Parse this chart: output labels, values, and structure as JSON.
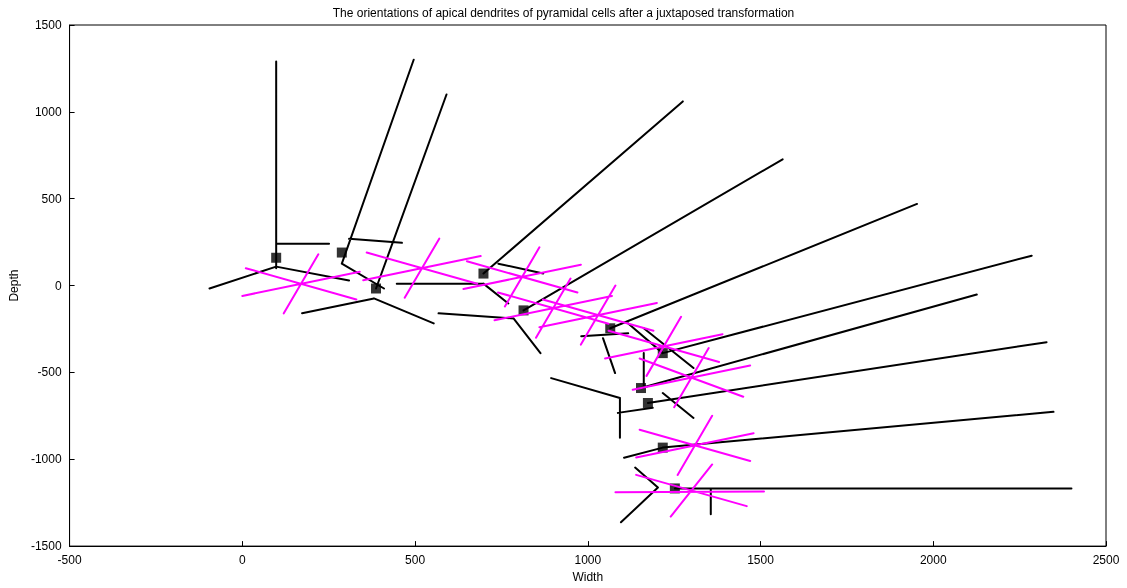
{
  "chart_data": {
    "type": "line",
    "title": "The orientations of apical dendrites of pyramidal cells after a juxtaposed transformation",
    "xlabel": "Width",
    "ylabel": "Depth",
    "xlim": [
      -500,
      2500
    ],
    "xticks": [
      -500,
      0,
      500,
      1000,
      1500,
      2000,
      2500
    ],
    "ylim": [
      -1500,
      1500
    ],
    "yticks": [
      -1500,
      -1000,
      -500,
      0,
      500,
      1000,
      1500
    ],
    "grid": false,
    "series": [
      {
        "color": "#000000",
        "marker": "none",
        "x": [
          98,
          98,
          null,
          98,
          251,
          null,
          288,
          496,
          null,
          387,
          591,
          null,
          698,
          1275,
          null,
          814,
          1564,
          null,
          1065,
          1953,
          null,
          1217,
          2285,
          null,
          1154,
          2126,
          null,
          1174,
          2328,
          null,
          1217,
          2348,
          null,
          1252,
          2400,
          null,
          -95,
          98,
          null,
          98,
          309,
          null,
          288,
          410,
          null,
          309,
          462,
          null,
          173,
          381,
          null,
          381,
          554,
          null,
          447,
          698,
          null,
          698,
          770,
          null,
          568,
          785,
          null,
          785,
          863,
          null,
          741,
          871,
          null,
          981,
          1117,
          null,
          1044,
          1079,
          null,
          1117,
          1217,
          null,
          1162,
          1306,
          null,
          1162,
          1162,
          null,
          894,
          1093,
          null,
          1093,
          1093,
          null,
          1087,
          1188,
          null,
          1217,
          1306,
          null,
          1105,
          1217,
          null,
          1137,
          1203,
          null,
          1203,
          1096,
          null,
          1356,
          1356,
          null
        ],
        "values": [
          1290,
          100,
          null,
          240,
          240,
          null,
          126,
          1300,
          null,
          -17,
          1100,
          null,
          69,
          1060,
          null,
          -143,
          727,
          null,
          -246,
          470,
          null,
          -389,
          172,
          null,
          -590,
          -52,
          null,
          -676,
          -326,
          null,
          -933,
          -727,
          null,
          -1168,
          -1168,
          null,
          -17,
          109,
          null,
          109,
          29,
          null,
          126,
          -17,
          null,
          269,
          246,
          null,
          -160,
          -74,
          null,
          -74,
          -218,
          null,
          11,
          11,
          null,
          11,
          -103,
          null,
          -160,
          -189,
          null,
          -189,
          -389,
          null,
          126,
          69,
          null,
          -292,
          -275,
          null,
          -303,
          -504,
          null,
          -218,
          -389,
          null,
          -246,
          -475,
          null,
          -389,
          -590,
          null,
          -533,
          -647,
          null,
          -647,
          -876,
          null,
          -733,
          -704,
          null,
          -619,
          -762,
          null,
          -991,
          -933,
          null,
          -1048,
          -1163,
          null,
          -1163,
          -1363,
          null,
          -1168,
          -1317,
          null
        ]
      },
      {
        "color": "#ff00ff",
        "marker": "none",
        "x": [
          0,
          340,
          null,
          10,
          330,
          null,
          120,
          220,
          null,
          350,
          690,
          null,
          360,
          680,
          null,
          470,
          570,
          null,
          640,
          980,
          null,
          650,
          970,
          null,
          760,
          860,
          null,
          730,
          1070,
          null,
          740,
          1060,
          null,
          850,
          950,
          null,
          860,
          1200,
          null,
          870,
          1190,
          null,
          980,
          1080,
          null,
          1050,
          1390,
          null,
          1060,
          1380,
          null,
          1170,
          1270,
          null,
          1130,
          1470,
          null,
          1250,
          1350,
          null,
          1150,
          1450,
          null,
          1140,
          1480,
          null,
          1150,
          1470,
          null,
          1260,
          1360,
          null,
          1080,
          1510,
          null,
          1140,
          1460,
          null,
          1240,
          1360
        ],
        "values": [
          -60,
          80,
          null,
          100,
          -80,
          null,
          -160,
          180,
          null,
          30,
          170,
          null,
          190,
          10,
          null,
          -70,
          270,
          null,
          -20,
          120,
          null,
          140,
          -40,
          null,
          -120,
          220,
          null,
          -200,
          -60,
          null,
          -40,
          -220,
          null,
          -300,
          40,
          null,
          -240,
          -100,
          null,
          -80,
          -260,
          null,
          -340,
          0,
          null,
          -420,
          -280,
          null,
          -260,
          -440,
          null,
          -520,
          -180,
          null,
          -600,
          -460,
          null,
          -700,
          -360,
          null,
          -420,
          -640,
          null,
          -990,
          -850,
          null,
          -830,
          -1010,
          null,
          -1090,
          -750,
          null,
          -1190,
          -1185,
          null,
          -1090,
          -1270,
          null,
          -1330,
          -1030
        ]
      },
      {
        "type": "scatter",
        "color": "#000000",
        "marker": "square",
        "x": [
          98,
          288,
          387,
          698,
          814,
          1065,
          1217,
          1154,
          1174,
          1217,
          1252
        ],
        "values": [
          160,
          190,
          -17,
          69,
          -143,
          -246,
          -389,
          -590,
          -676,
          -933,
          -1168
        ]
      }
    ]
  }
}
